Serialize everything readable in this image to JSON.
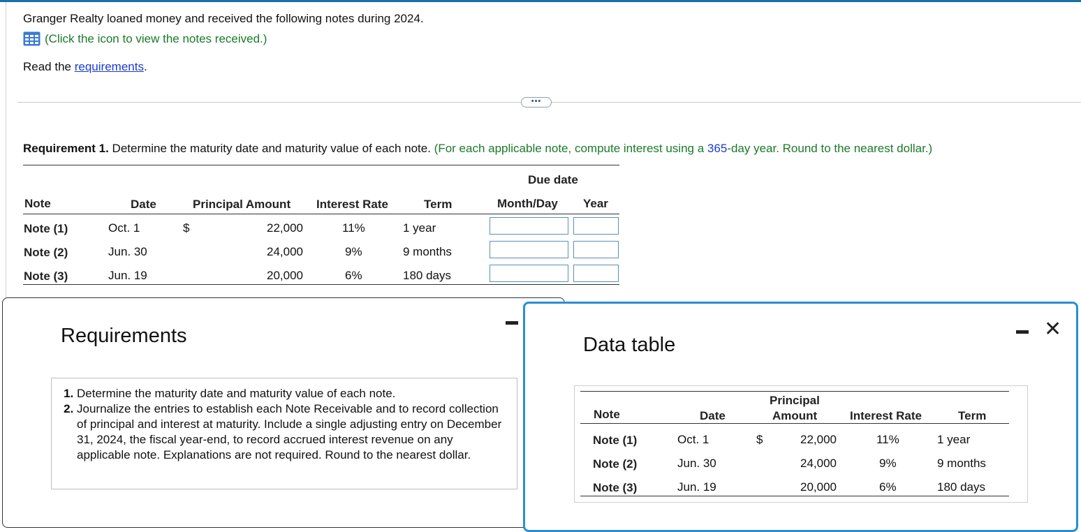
{
  "intro": "Granger Realty loaned money and received the following notes during 2024.",
  "notes_link": "(Click the icon to view the notes received.)",
  "read_prefix": "Read the ",
  "read_link": "requirements",
  "read_suffix": ".",
  "ellipsis": "•••",
  "requirement1": {
    "label": "Requirement 1.",
    "text": " Determine the maturity date and maturity value of each note. ",
    "hint_a": "(For each applicable note, compute interest using a ",
    "hint_num": "365",
    "hint_b": "-day year. Round to the nearest dollar.)"
  },
  "main_table": {
    "due_date": "Due date",
    "headers": [
      "Note",
      "Date",
      "Principal Amount",
      "Interest Rate",
      "Term",
      "Month/Day",
      "Year"
    ],
    "rows": [
      {
        "note": "Note (1)",
        "date": "Oct. 1",
        "currency": "$",
        "principal": "22,000",
        "rate": "11%",
        "term": "1 year"
      },
      {
        "note": "Note (2)",
        "date": "Jun. 30",
        "currency": "",
        "principal": "24,000",
        "rate": "9%",
        "term": "9 months"
      },
      {
        "note": "Note (3)",
        "date": "Jun. 19",
        "currency": "",
        "principal": "20,000",
        "rate": "6%",
        "term": "180 days"
      }
    ]
  },
  "requirements_window": {
    "title": "Requirements",
    "items": [
      "Determine the maturity date and maturity value of each note.",
      "Journalize the entries to establish each Note Receivable and to record collection of principal and interest at maturity. Include a single adjusting entry on December 31, 2024, the fiscal year-end, to record accrued interest revenue on any applicable note. Explanations are not required. Round to the nearest dollar."
    ]
  },
  "data_window": {
    "title": "Data table",
    "close": "✕",
    "headers": {
      "note": "Note",
      "date": "Date",
      "principal_1": "Principal",
      "principal_2": "Amount",
      "rate": "Interest Rate",
      "term": "Term"
    },
    "rows": [
      {
        "note": "Note (1)",
        "date": "Oct. 1",
        "currency": "$",
        "principal": "22,000",
        "rate": "11%",
        "term": "1 year"
      },
      {
        "note": "Note (2)",
        "date": "Jun. 30",
        "currency": "",
        "principal": "24,000",
        "rate": "9%",
        "term": "9 months"
      },
      {
        "note": "Note (3)",
        "date": "Jun. 19",
        "currency": "",
        "principal": "20,000",
        "rate": "6%",
        "term": "180 days"
      }
    ]
  }
}
